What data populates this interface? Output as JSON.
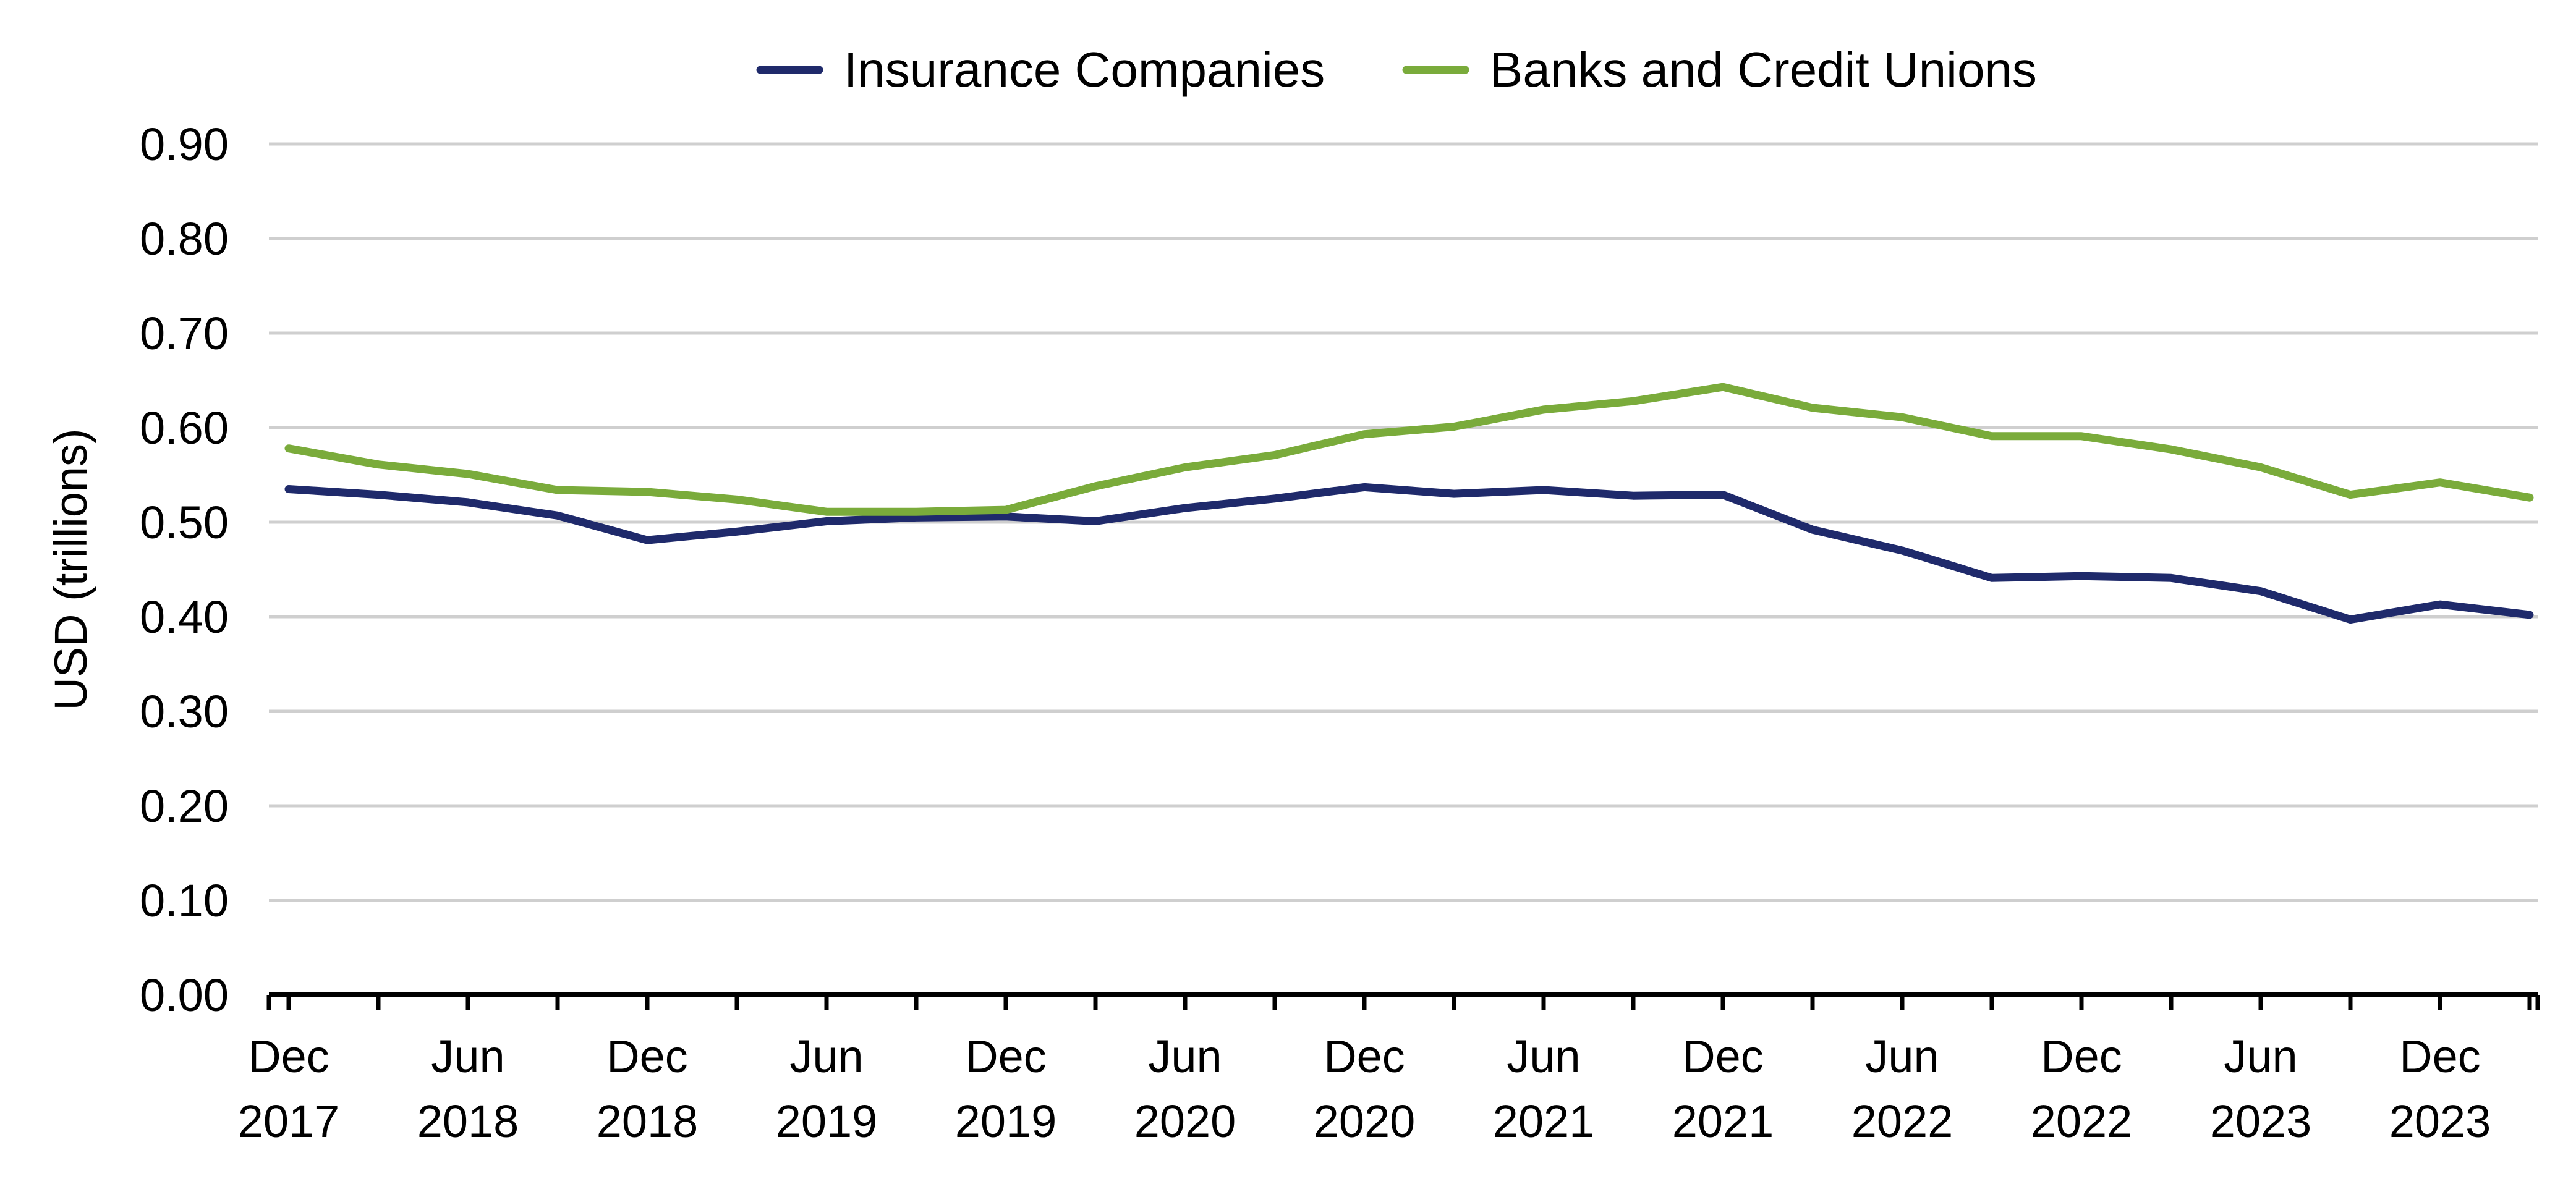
{
  "chart_data": {
    "type": "line",
    "title": "",
    "xlabel": "",
    "ylabel": "USD (trillions)",
    "ylim": [
      0,
      0.9
    ],
    "yticks": [
      "0.00",
      "0.10",
      "0.20",
      "0.30",
      "0.40",
      "0.50",
      "0.60",
      "0.70",
      "0.80",
      "0.90"
    ],
    "grid": true,
    "legend_position": "top-center",
    "x": [
      "Dec 2017",
      "Mar 2018",
      "Jun 2018",
      "Sep 2018",
      "Dec 2018",
      "Mar 2019",
      "Jun 2019",
      "Sep 2019",
      "Dec 2019",
      "Mar 2020",
      "Jun 2020",
      "Sep 2020",
      "Dec 2020",
      "Mar 2021",
      "Jun 2021",
      "Sep 2021",
      "Dec 2021",
      "Mar 2022",
      "Jun 2022",
      "Sep 2022",
      "Dec 2022",
      "Mar 2023",
      "Jun 2023",
      "Sep 2023",
      "Dec 2023",
      "Mar 2024"
    ],
    "xtick_labels": [
      {
        "month": "Dec",
        "year": "2017"
      },
      {
        "month": "Jun",
        "year": "2018"
      },
      {
        "month": "Dec",
        "year": "2018"
      },
      {
        "month": "Jun",
        "year": "2019"
      },
      {
        "month": "Dec",
        "year": "2019"
      },
      {
        "month": "Jun",
        "year": "2020"
      },
      {
        "month": "Dec",
        "year": "2020"
      },
      {
        "month": "Jun",
        "year": "2021"
      },
      {
        "month": "Dec",
        "year": "2021"
      },
      {
        "month": "Jun",
        "year": "2022"
      },
      {
        "month": "Dec",
        "year": "2022"
      },
      {
        "month": "Jun",
        "year": "2023"
      },
      {
        "month": "Dec",
        "year": "2023"
      }
    ],
    "series": [
      {
        "name": "Insurance Companies",
        "color": "#1f2a6b",
        "values": [
          0.535,
          0.529,
          0.521,
          0.507,
          0.481,
          0.49,
          0.501,
          0.505,
          0.506,
          0.501,
          0.515,
          0.525,
          0.537,
          0.53,
          0.534,
          0.528,
          0.529,
          0.492,
          0.47,
          0.441,
          0.443,
          0.441,
          0.427,
          0.397,
          0.413,
          0.402
        ]
      },
      {
        "name": "Banks and Credit Unions",
        "color": "#7aab3b",
        "values": [
          0.578,
          0.561,
          0.551,
          0.534,
          0.532,
          0.524,
          0.511,
          0.511,
          0.513,
          0.538,
          0.558,
          0.571,
          0.593,
          0.601,
          0.619,
          0.628,
          0.643,
          0.621,
          0.611,
          0.591,
          0.591,
          0.577,
          0.558,
          0.529,
          0.542,
          0.526
        ]
      }
    ]
  }
}
